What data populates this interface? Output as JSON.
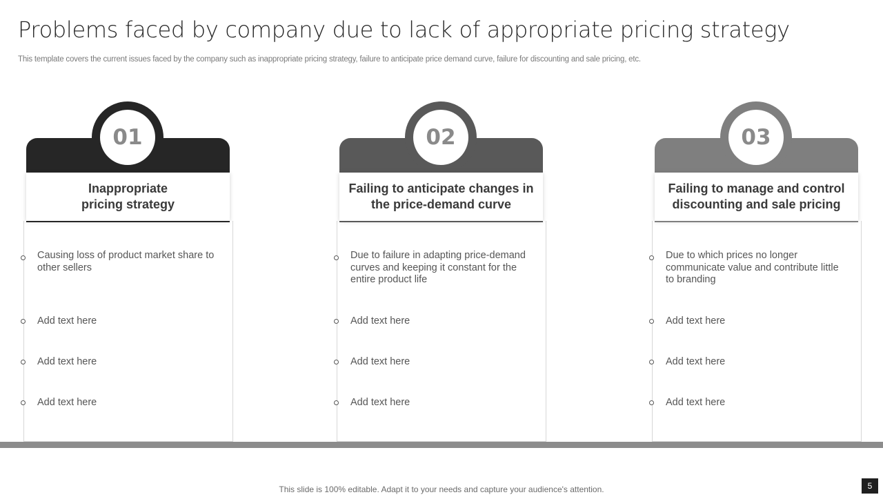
{
  "slide": {
    "title": "Problems faced by company due to lack of appropriate pricing strategy",
    "subtitle": "This template covers the current issues faced by the company such as inappropriate pricing strategy, failure to anticipate price demand curve, failure for discounting and sale pricing, etc.",
    "footer": "This slide is 100% editable. Adapt it to your needs and capture your audience's attention.",
    "page_number": "5"
  },
  "cards": [
    {
      "number": "01",
      "heading": "Inappropriate pricing strategy",
      "color": "#262626",
      "items": [
        "Causing loss of product market share to other sellers",
        "Add text here",
        "Add text here",
        "Add text here"
      ]
    },
    {
      "number": "02",
      "heading": "Failing to anticipate changes in the price-demand curve",
      "color": "#595959",
      "items": [
        "Due to failure in adapting price-demand curves and keeping it constant for the entire product life",
        "Add text here",
        "Add text here",
        "Add text here"
      ]
    },
    {
      "number": "03",
      "heading": "Failing to manage and control discounting and sale pricing",
      "color": "#7f7f7f",
      "items": [
        "Due to which prices no longer communicate value and contribute little to branding",
        "Add text here",
        "Add text here",
        "Add text here"
      ]
    }
  ]
}
